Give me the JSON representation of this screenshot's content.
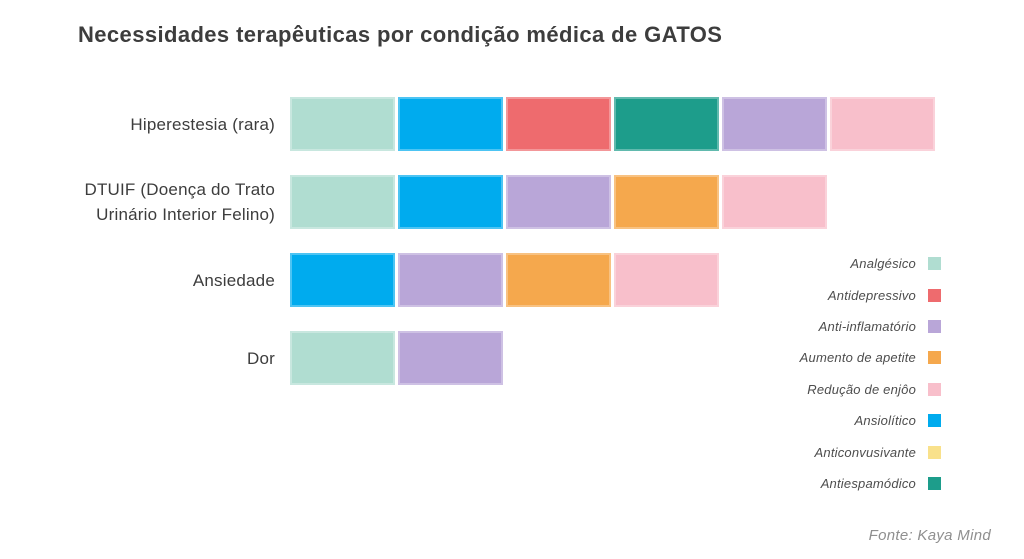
{
  "title": "Necessidades terapêuticas por condição médica de GATOS",
  "source": "Fonte: Kaya Mind",
  "chart_data": {
    "type": "bar",
    "orientation": "horizontal-stacked",
    "title": "Necessidades terapêuticas por condição médica de GATOS",
    "xlabel": "",
    "ylabel": "",
    "grid": false,
    "axis_ticks_visible": false,
    "segment_value": 1,
    "categories": [
      "Hiperestesia (rara)",
      "DTUIF (Doença do Trato Urinário Interior Felino)",
      "Ansiedade",
      "Dor"
    ],
    "rows": [
      {
        "label_lines": [
          "Hiperestesia (rara)"
        ],
        "segments": [
          "Analgésico",
          "Ansiolítico",
          "Antidepressivo",
          "Antiespamódico",
          "Anti-inflamatório",
          "Redução de enjôo"
        ],
        "values": [
          1,
          1,
          1,
          1,
          1,
          1
        ],
        "total": 6
      },
      {
        "label_lines": [
          "DTUIF (Doença do Trato",
          "Urinário Interior Felino)"
        ],
        "segments": [
          "Analgésico",
          "Ansiolítico",
          "Anti-inflamatório",
          "Aumento de apetite",
          "Redução de enjôo"
        ],
        "values": [
          1,
          1,
          1,
          1,
          1
        ],
        "total": 5
      },
      {
        "label_lines": [
          "Ansiedade"
        ],
        "segments": [
          "Ansiolítico",
          "Anti-inflamatório",
          "Aumento de apetite",
          "Redução de enjôo"
        ],
        "values": [
          1,
          1,
          1,
          1
        ],
        "total": 4
      },
      {
        "label_lines": [
          "Dor"
        ],
        "segments": [
          "Analgésico",
          "Anti-inflamatório"
        ],
        "values": [
          1,
          1
        ],
        "total": 2
      }
    ],
    "legend_position": "right",
    "legend": [
      {
        "label": "Analgésico",
        "color": "#b0ddd1"
      },
      {
        "label": "Antidepressivo",
        "color": "#ee6b6e"
      },
      {
        "label": "Anti-inflamatório",
        "color": "#b9a6d8"
      },
      {
        "label": "Aumento de apetite",
        "color": "#f5a84d"
      },
      {
        "label": "Redução de enjôo",
        "color": "#f8bfcb"
      },
      {
        "label": "Ansiolítico",
        "color": "#00abee"
      },
      {
        "label": "Anticonvusivante",
        "color": "#f9e18b"
      },
      {
        "label": "Antiespamódico",
        "color": "#1d9d8b"
      }
    ]
  },
  "layout_colors": {
    "title_text": "#3d3d3d",
    "axis_label_text": "#3d3d3d",
    "legend_text": "#4d4d4d",
    "source_text": "#8f8f8f",
    "background": "#ffffff"
  }
}
